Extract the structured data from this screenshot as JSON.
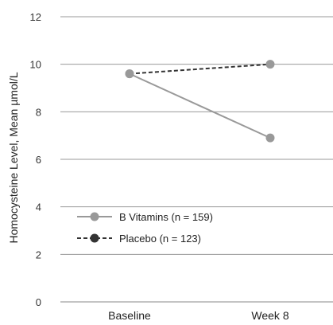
{
  "chart_data": {
    "type": "line",
    "ylabel": "Homocysteine Level, Mean µmol/L",
    "categories": [
      "Baseline",
      "Week 8"
    ],
    "ylim": [
      0,
      12
    ],
    "yticks": [
      0,
      2,
      4,
      6,
      8,
      10,
      12
    ],
    "grid": true,
    "legend_position": "bottom-left",
    "series": [
      {
        "name": "B Vitamins (n = 159)",
        "values": [
          9.6,
          6.9
        ],
        "color": "#999999",
        "style": "solid"
      },
      {
        "name": "Placebo (n = 123)",
        "values": [
          9.6,
          10.0
        ],
        "color": "#333333",
        "style": "dashed"
      }
    ]
  }
}
